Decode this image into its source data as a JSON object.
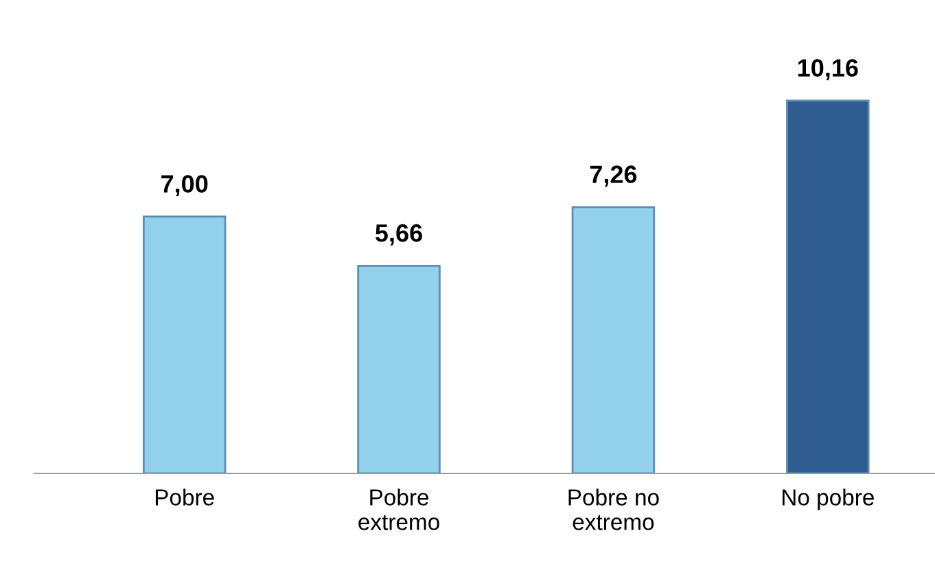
{
  "chart_data": {
    "type": "bar",
    "categories": [
      "Pobre",
      "Pobre\nextremo",
      "Pobre no\nextremo",
      "No pobre"
    ],
    "values": [
      7.0,
      5.66,
      7.26,
      10.16
    ],
    "colors": [
      "#92d0ec",
      "#92d0ec",
      "#92d0ec",
      "#2f5c8f"
    ],
    "value_labels": [
      "7,00",
      "5,66",
      "7,26",
      "10,16"
    ],
    "grid": false,
    "legend": false
  }
}
